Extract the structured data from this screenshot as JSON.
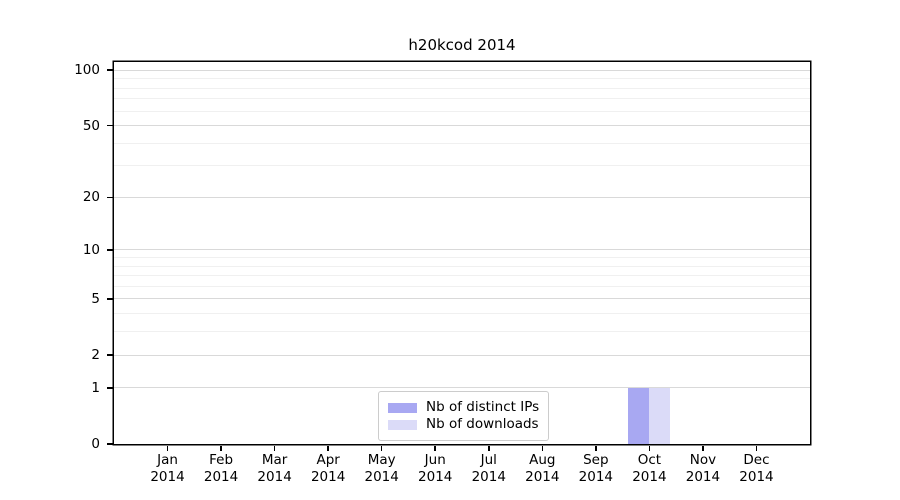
{
  "chart_data": {
    "type": "bar",
    "title": "h20kcod 2014",
    "x": {
      "months": [
        "Jan",
        "Feb",
        "Mar",
        "Apr",
        "May",
        "Jun",
        "Jul",
        "Aug",
        "Sep",
        "Oct",
        "Nov",
        "Dec"
      ],
      "year": "2014"
    },
    "yticks": [
      0,
      1,
      2,
      5,
      10,
      20,
      50,
      100
    ],
    "y_minor_gridlines": [
      3,
      4,
      6,
      7,
      8,
      9,
      30,
      40,
      60,
      70,
      80,
      90
    ],
    "scale": "log1p",
    "ylim": [
      0,
      111
    ],
    "grid": "both",
    "series": [
      {
        "name": "Nb of distinct IPs",
        "color": "#a8a8f2",
        "values": [
          0,
          0,
          0,
          0,
          0,
          0,
          0,
          0,
          0,
          1,
          0,
          0
        ]
      },
      {
        "name": "Nb of downloads",
        "color": "#dbdbf8",
        "values": [
          0,
          0,
          0,
          0,
          0,
          0,
          0,
          0,
          0,
          1,
          0,
          0
        ]
      }
    ],
    "legend": {
      "position": "bottom-center"
    }
  }
}
